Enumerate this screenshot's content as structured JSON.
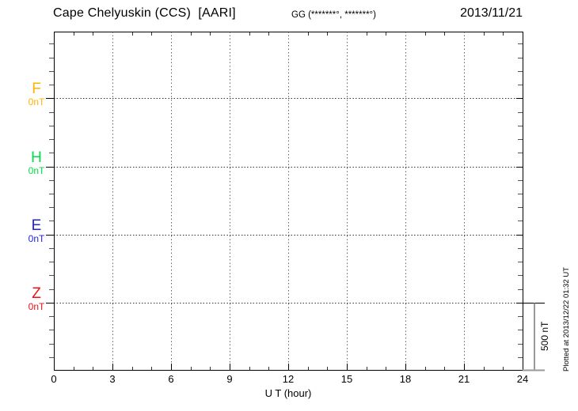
{
  "header": {
    "title": "Cape Chelyuskin (CCS)  [AARI]",
    "coords": "GG (*******°, *******°)",
    "date": "2013/11/21"
  },
  "components": [
    {
      "label": "F",
      "unit_label": "0nT",
      "color": "#FFB300"
    },
    {
      "label": "H",
      "unit_label": "0nT",
      "color": "#00DD44"
    },
    {
      "label": "E",
      "unit_label": "0nT",
      "color": "#2222DD"
    },
    {
      "label": "Z",
      "unit_label": "0nT",
      "color": "#EE1111"
    }
  ],
  "xaxis": {
    "label": "U T (hour)",
    "tick_labels": [
      0,
      3,
      6,
      9,
      12,
      15,
      18,
      21,
      24
    ]
  },
  "scale_bar": {
    "label": "500 nT"
  },
  "footer_note": "Plotted at 2013/12/22 01:32 UT",
  "chart_data": {
    "type": "line",
    "title": "Cape Chelyuskin (CCS) [AARI] magnetogram",
    "date": "2013/11/21",
    "xlabel": "U T (hour)",
    "xlim": [
      0,
      24
    ],
    "x_major_ticks": [
      0,
      3,
      6,
      9,
      12,
      15,
      18,
      21,
      24
    ],
    "x_minor_tick_interval_hours": 1,
    "series": [
      {
        "name": "F",
        "baseline_value_nT": 0,
        "color": "#FFB300",
        "values": []
      },
      {
        "name": "H",
        "baseline_value_nT": 0,
        "color": "#00DD44",
        "values": []
      },
      {
        "name": "E",
        "baseline_value_nT": 0,
        "color": "#2222DD",
        "values": []
      },
      {
        "name": "Z",
        "baseline_value_nT": 0,
        "color": "#EE1111",
        "values": []
      }
    ],
    "y_scale": {
      "nT_per_component_division": 500,
      "minor_ticks_per_division": 5
    },
    "grid": "dotted vertical lines every 3 hours; dotted horizontal line at each component 0 nT baseline",
    "legend_position": "left margin component labels",
    "note": "no data traces plotted (empty magnetogram for this day)"
  }
}
